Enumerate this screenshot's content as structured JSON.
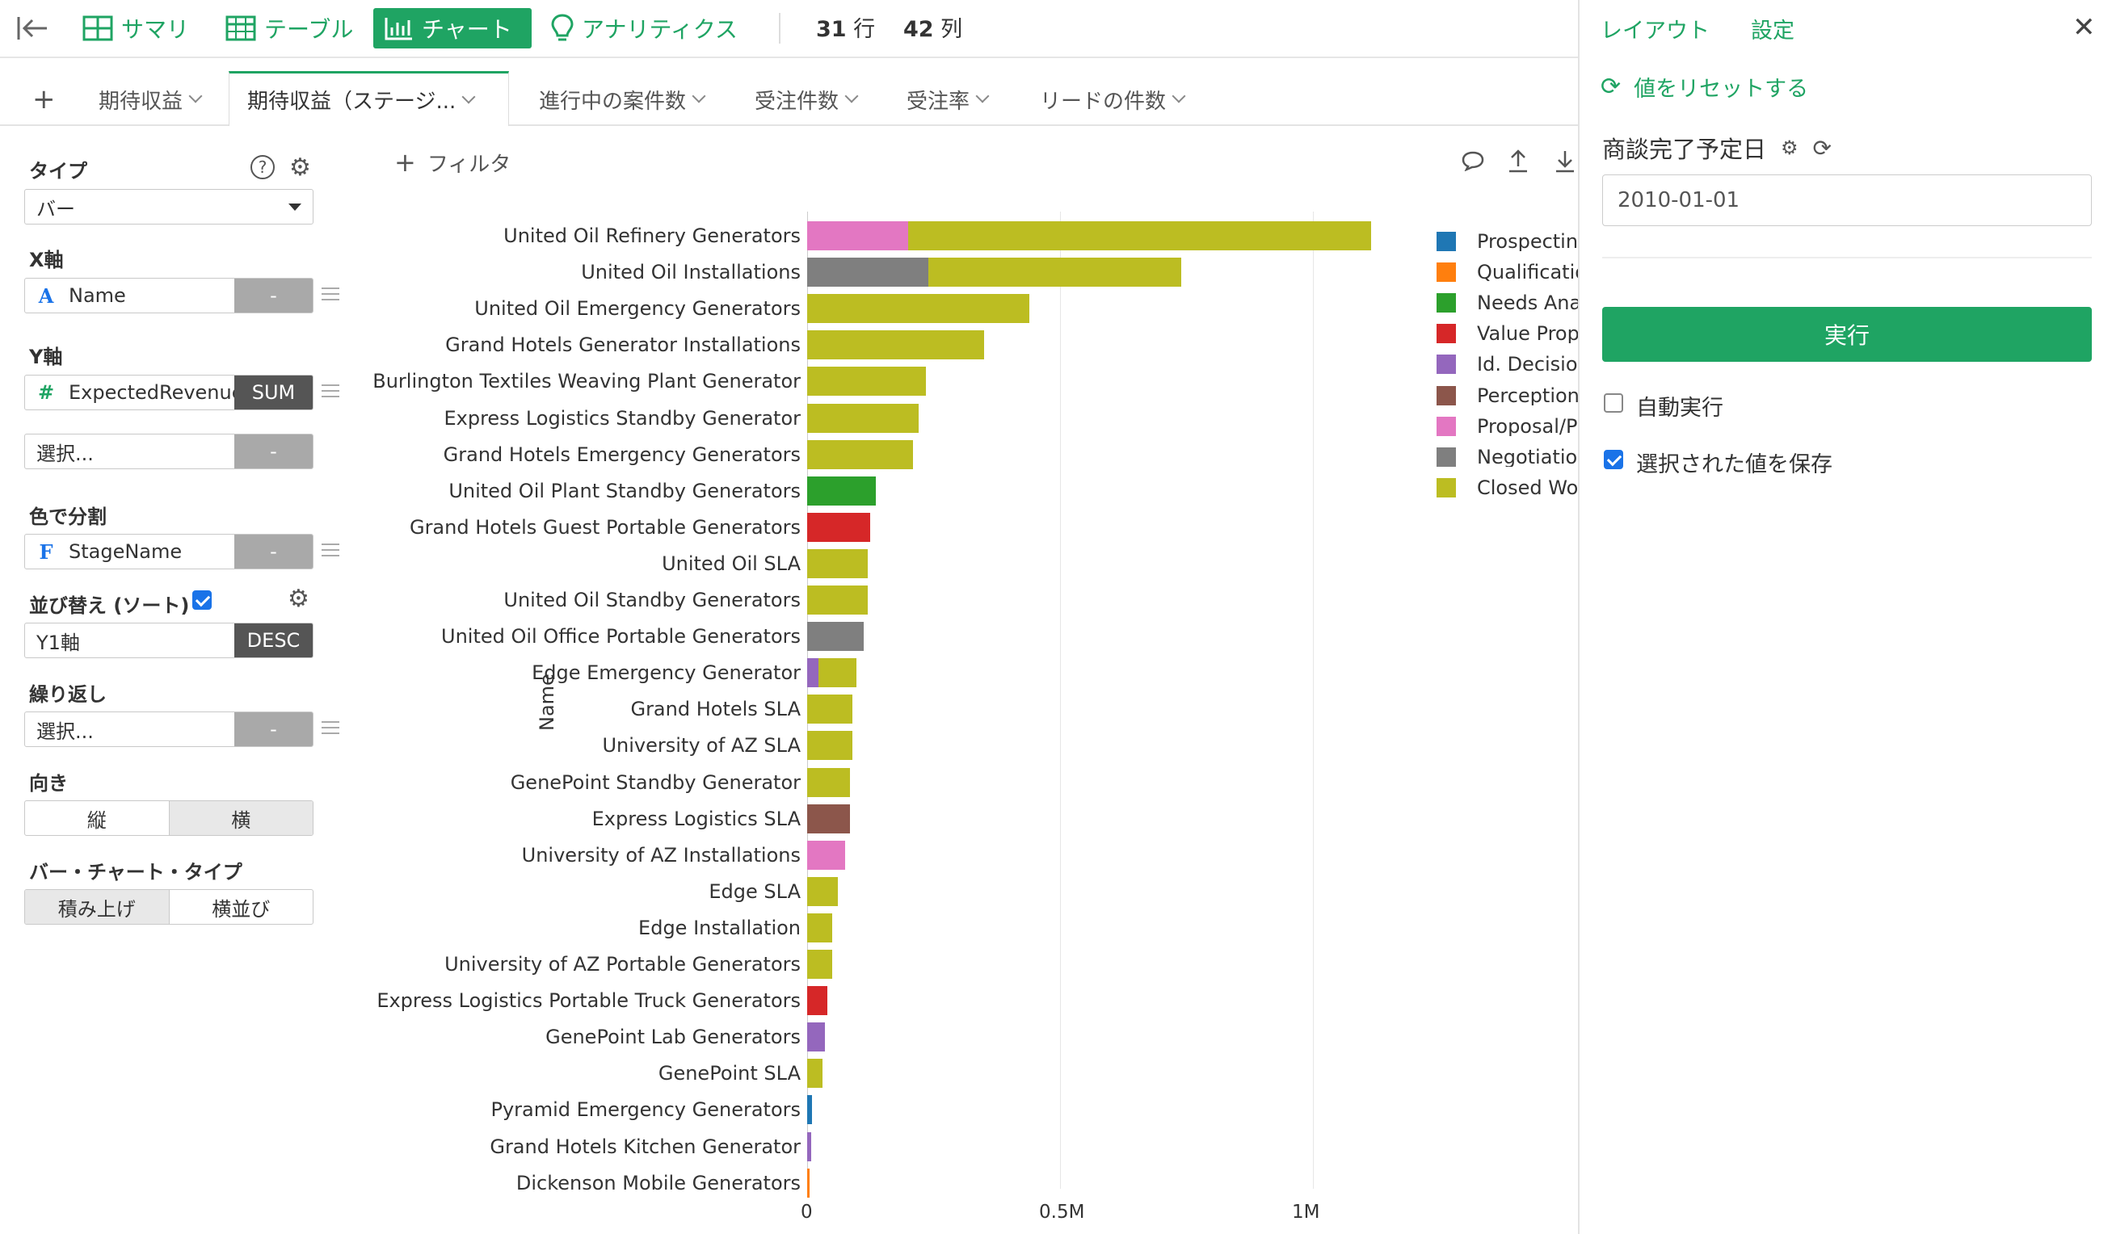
{
  "toolbar": {
    "summary": "サマリ",
    "table": "テーブル",
    "chart": "チャート",
    "analytics": "アナリティクス",
    "rows_num": "31",
    "rows_unit": "行",
    "cols_num": "42",
    "cols_unit": "列",
    "icons": [
      "collapse-left-icon",
      "grid-icon",
      "table-icon",
      "bar-chart-icon",
      "lightbulb-icon"
    ]
  },
  "tabs": [
    "期待収益",
    "期待収益（ステージ...",
    "進行中の案件数",
    "受注件数",
    "受注率",
    "リードの件数"
  ],
  "left_panel": {
    "type_label": "タイプ",
    "type_value": "バー",
    "x_label": "X軸",
    "x_field": "Name",
    "x_btn": "-",
    "y_label": "Y軸",
    "y_field": "ExpectedRevenue",
    "y_btn": "SUM",
    "y2_field": "選択...",
    "y2_btn": "-",
    "color_label": "色で分割",
    "color_field": "StageName",
    "color_btn": "-",
    "sort_label": "並び替え (ソート)",
    "sort_field": "Y1軸",
    "sort_btn": "DESC",
    "repeat_label": "繰り返し",
    "repeat_field": "選択...",
    "repeat_btn": "-",
    "orient_label": "向き",
    "orient_v": "縦",
    "orient_h": "横",
    "bartype_label": "バー・チャート・タイプ",
    "bartype_stack": "積み上げ",
    "bartype_side": "横並び"
  },
  "filter_label": "フィルタ",
  "chart_data": {
    "type": "bar",
    "orientation": "horizontal",
    "stacked": true,
    "ylabel": "Name",
    "xlim": [
      0,
      1520000
    ],
    "x_ticks": [
      "0",
      "0.5M",
      "1M"
    ],
    "x_tick_values": [
      0,
      500000,
      1000000
    ],
    "grid": true,
    "legend_position": "right",
    "stages": [
      {
        "name": "Prospecting",
        "color": "#1f77b4"
      },
      {
        "name": "Qualification",
        "color": "#ff7f0e"
      },
      {
        "name": "Needs Analysis",
        "color": "#2ca02c"
      },
      {
        "name": "Value Proposition",
        "color": "#d62728"
      },
      {
        "name": "Id. Decision Makers",
        "color": "#9467bd"
      },
      {
        "name": "Perception Analysis",
        "color": "#8c564b"
      },
      {
        "name": "Proposal/Price Quote",
        "color": "#e377c2"
      },
      {
        "name": "Negotiation/Review",
        "color": "#7f7f7f"
      },
      {
        "name": "Closed Won",
        "color": "#bcbd22"
      }
    ],
    "categories": [
      "United Oil Refinery Generators",
      "United Oil Installations",
      "United Oil Emergency Generators",
      "Grand Hotels Generator Installations",
      "Burlington Textiles Weaving Plant Generator",
      "Express Logistics Standby Generator",
      "Grand Hotels Emergency Generators",
      "United Oil Plant Standby Generators",
      "Grand Hotels Guest Portable Generators",
      "United Oil SLA",
      "United Oil Standby Generators",
      "United Oil Office Portable Generators",
      "Edge Emergency Generator",
      "Grand Hotels SLA",
      "University of AZ SLA",
      "GenePoint Standby Generator",
      "Express Logistics SLA",
      "University of AZ Installations",
      "Edge SLA",
      "Edge Installation",
      "University of AZ Portable Generators",
      "Express Logistics Portable Truck Generators",
      "GenePoint Lab Generators",
      "GenePoint SLA",
      "Pyramid Emergency Generators",
      "Grand Hotels Kitchen Generator",
      "Dickenson Mobile Generators"
    ],
    "series": [
      {
        "name": "Prospecting",
        "values": [
          0,
          0,
          0,
          0,
          0,
          0,
          0,
          0,
          0,
          0,
          0,
          0,
          0,
          0,
          0,
          0,
          0,
          0,
          0,
          0,
          0,
          0,
          0,
          0,
          10000,
          0,
          0
        ]
      },
      {
        "name": "Qualification",
        "values": [
          0,
          0,
          0,
          0,
          0,
          0,
          0,
          0,
          0,
          0,
          0,
          0,
          0,
          0,
          0,
          0,
          0,
          0,
          0,
          0,
          0,
          0,
          0,
          0,
          0,
          0,
          3000
        ]
      },
      {
        "name": "Needs Analysis",
        "values": [
          0,
          0,
          0,
          0,
          0,
          0,
          0,
          135000,
          0,
          0,
          0,
          0,
          0,
          0,
          0,
          0,
          0,
          0,
          0,
          0,
          0,
          0,
          0,
          0,
          0,
          0,
          0
        ]
      },
      {
        "name": "Value Proposition",
        "values": [
          0,
          0,
          0,
          0,
          0,
          0,
          0,
          0,
          125000,
          0,
          0,
          0,
          0,
          0,
          0,
          0,
          0,
          0,
          0,
          0,
          0,
          40000,
          0,
          0,
          0,
          0,
          0
        ]
      },
      {
        "name": "Id. Decision Makers",
        "values": [
          0,
          0,
          0,
          0,
          0,
          0,
          0,
          0,
          0,
          0,
          0,
          0,
          22000,
          0,
          0,
          0,
          0,
          0,
          0,
          0,
          0,
          0,
          35000,
          0,
          0,
          8000,
          0
        ]
      },
      {
        "name": "Perception Analysis",
        "values": [
          0,
          0,
          0,
          0,
          0,
          0,
          0,
          0,
          0,
          0,
          0,
          0,
          0,
          0,
          0,
          0,
          85000,
          0,
          0,
          0,
          0,
          0,
          0,
          0,
          0,
          0,
          0
        ]
      },
      {
        "name": "Proposal/Price Quote",
        "values": [
          200000,
          0,
          0,
          0,
          0,
          0,
          0,
          0,
          0,
          0,
          0,
          0,
          0,
          0,
          0,
          0,
          0,
          75000,
          0,
          0,
          0,
          0,
          0,
          0,
          0,
          0,
          0
        ]
      },
      {
        "name": "Negotiation/Review",
        "values": [
          0,
          240000,
          0,
          0,
          0,
          0,
          0,
          0,
          0,
          0,
          0,
          112500,
          0,
          0,
          0,
          0,
          0,
          0,
          0,
          0,
          0,
          0,
          0,
          0,
          0,
          0,
          0
        ]
      },
      {
        "name": "Closed Won",
        "values": [
          915000,
          500000,
          440000,
          350000,
          235000,
          220000,
          210000,
          0,
          0,
          120000,
          120000,
          0,
          75000,
          90000,
          90000,
          85000,
          0,
          0,
          60000,
          50000,
          50000,
          0,
          0,
          30000,
          0,
          0,
          0
        ]
      }
    ]
  },
  "legend": [
    "Prospecting",
    "Qualificatio",
    "Needs Anal",
    "Value Propo",
    "Id. Decision",
    "Perception",
    "Proposal/Pr",
    "Negotiation",
    "Closed Wor"
  ],
  "right_panel": {
    "layout_tab": "レイアウト",
    "settings_tab": "設定",
    "reset": "値をリセットする",
    "param_label": "商談完了予定日",
    "date_value": "2010-01-01",
    "run": "実行",
    "auto_run": "自動実行",
    "auto_run_checked": false,
    "save_values": "選択された値を保存",
    "save_values_checked": true
  }
}
